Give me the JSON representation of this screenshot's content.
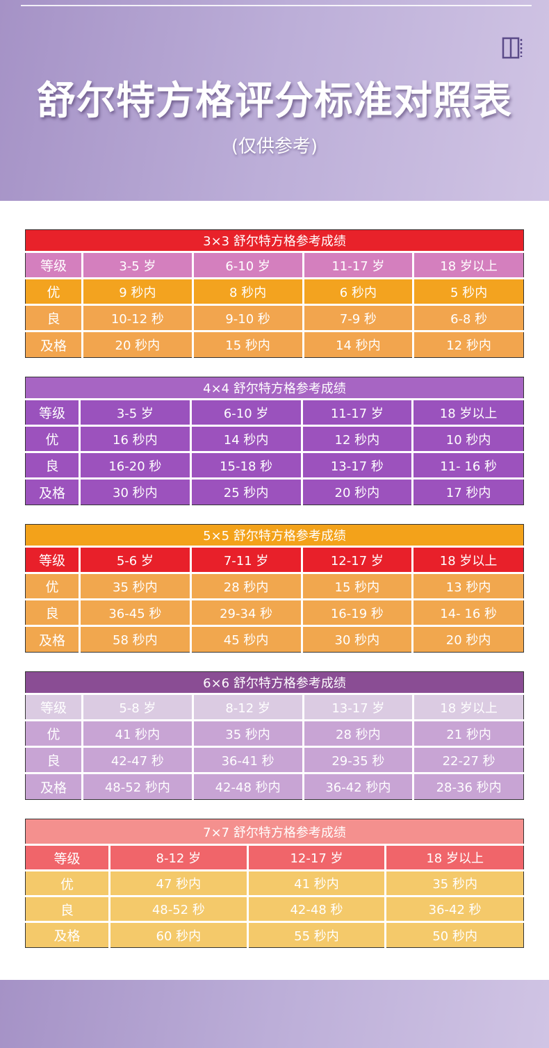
{
  "header": {
    "title": "舒尔特方格评分标准对照表",
    "subtitle": "(仅供参考)",
    "icon": "book-icon"
  },
  "tables": [
    {
      "caption": "3×3 舒尔特方格参考成绩",
      "header": [
        "等级",
        "3-5 岁",
        "6-10 岁",
        "11-17 岁",
        "18 岁以上"
      ],
      "rows": [
        [
          "优",
          "9 秒内",
          "8 秒内",
          "6 秒内",
          "5 秒内"
        ],
        [
          "良",
          "10-12 秒",
          "9-10 秒",
          "7-9 秒",
          "6-8 秒"
        ],
        [
          "及格",
          "20 秒内",
          "15 秒内",
          "14 秒内",
          "12 秒内"
        ]
      ]
    },
    {
      "caption": "4×4 舒尔特方格参考成绩",
      "header": [
        "等级",
        "3-5 岁",
        "6-10 岁",
        "11-17 岁",
        "18 岁以上"
      ],
      "rows": [
        [
          "优",
          "16 秒内",
          "14 秒内",
          "12 秒内",
          "10 秒内"
        ],
        [
          "良",
          "16-20 秒",
          "15-18 秒",
          "13-17 秒",
          "11- 16 秒"
        ],
        [
          "及格",
          "30 秒内",
          "25 秒内",
          "20 秒内",
          "17 秒内"
        ]
      ]
    },
    {
      "caption": "5×5 舒尔特方格参考成绩",
      "header": [
        "等级",
        "5-6 岁",
        "7-11 岁",
        "12-17 岁",
        "18 岁以上"
      ],
      "rows": [
        [
          "优",
          "35 秒内",
          "28 秒内",
          "15 秒内",
          "13 秒内"
        ],
        [
          "良",
          "36-45 秒",
          "29-34 秒",
          "16-19 秒",
          "14- 16 秒"
        ],
        [
          "及格",
          "58 秒内",
          "45 秒内",
          "30 秒内",
          "20 秒内"
        ]
      ]
    },
    {
      "caption": "6×6 舒尔特方格参考成绩",
      "header": [
        "等级",
        "5-8 岁",
        "8-12 岁",
        "13-17 岁",
        "18 岁以上"
      ],
      "rows": [
        [
          "优",
          "41 秒内",
          "35 秒内",
          "28 秒内",
          "21 秒内"
        ],
        [
          "良",
          "42-47 秒",
          "36-41 秒",
          "29-35 秒",
          "22-27 秒"
        ],
        [
          "及格",
          "48-52 秒内",
          "42-48 秒内",
          "36-42 秒内",
          "28-36 秒内"
        ]
      ]
    },
    {
      "caption": "7×7 舒尔特方格参考成绩",
      "header": [
        "等级",
        "8-12 岁",
        "12-17 岁",
        "18 岁以上"
      ],
      "rows": [
        [
          "优",
          "47 秒内",
          "41 秒内",
          "35 秒内"
        ],
        [
          "良",
          "48-52 秒",
          "42-48 秒",
          "36-42 秒"
        ],
        [
          "及格",
          "60 秒内",
          "55 秒内",
          "50 秒内"
        ]
      ]
    }
  ]
}
